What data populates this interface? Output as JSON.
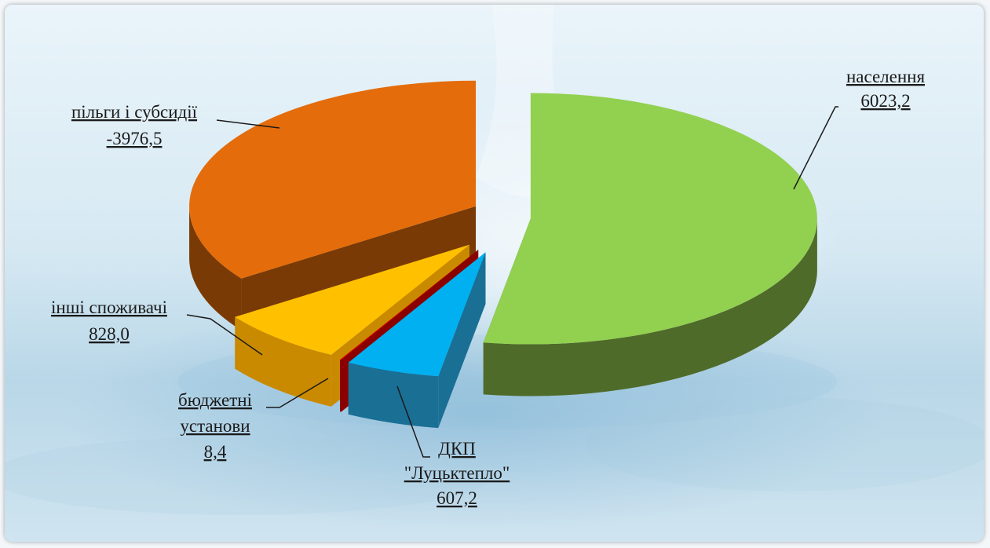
{
  "chart_data": {
    "type": "pie",
    "title": "",
    "slices": [
      {
        "label": "населення",
        "value_text": "6023,2",
        "value": 6023.2,
        "color": "#92d050",
        "side_color": "#4f6b2a"
      },
      {
        "label": "ДКП \"Луцьктепло\"",
        "value_text": "607,2",
        "value": 607.2,
        "color": "#00b0f0",
        "side_color": "#1a6f95"
      },
      {
        "label": "бюджетні установи",
        "value_text": "8,4",
        "value": 8.4,
        "color": "#e00000",
        "side_color": "#8a0000"
      },
      {
        "label": "інші споживачі",
        "value_text": "828,0",
        "value": 828.0,
        "color": "#ffc000",
        "side_color": "#c98a00"
      },
      {
        "label": "пільги і субсидії",
        "value_text": "-3976,5",
        "value": 3976.5,
        "color": "#e46c0a",
        "side_color": "#7a3a05"
      }
    ]
  },
  "labels": {
    "naselennia": {
      "line1": "населення",
      "line2": "6023,2"
    },
    "dkp": {
      "line1": "ДКП",
      "line2": "\"Луцьктепло\"",
      "line3": "607,2"
    },
    "biudzhetni": {
      "line1": "бюджетні",
      "line2": "установи",
      "line3": "8,4"
    },
    "inshi": {
      "line1": "інші споживачі",
      "line2": "828,0"
    },
    "pilhy": {
      "line1": "пільги і субсидії",
      "line2": "-3976,5"
    }
  }
}
